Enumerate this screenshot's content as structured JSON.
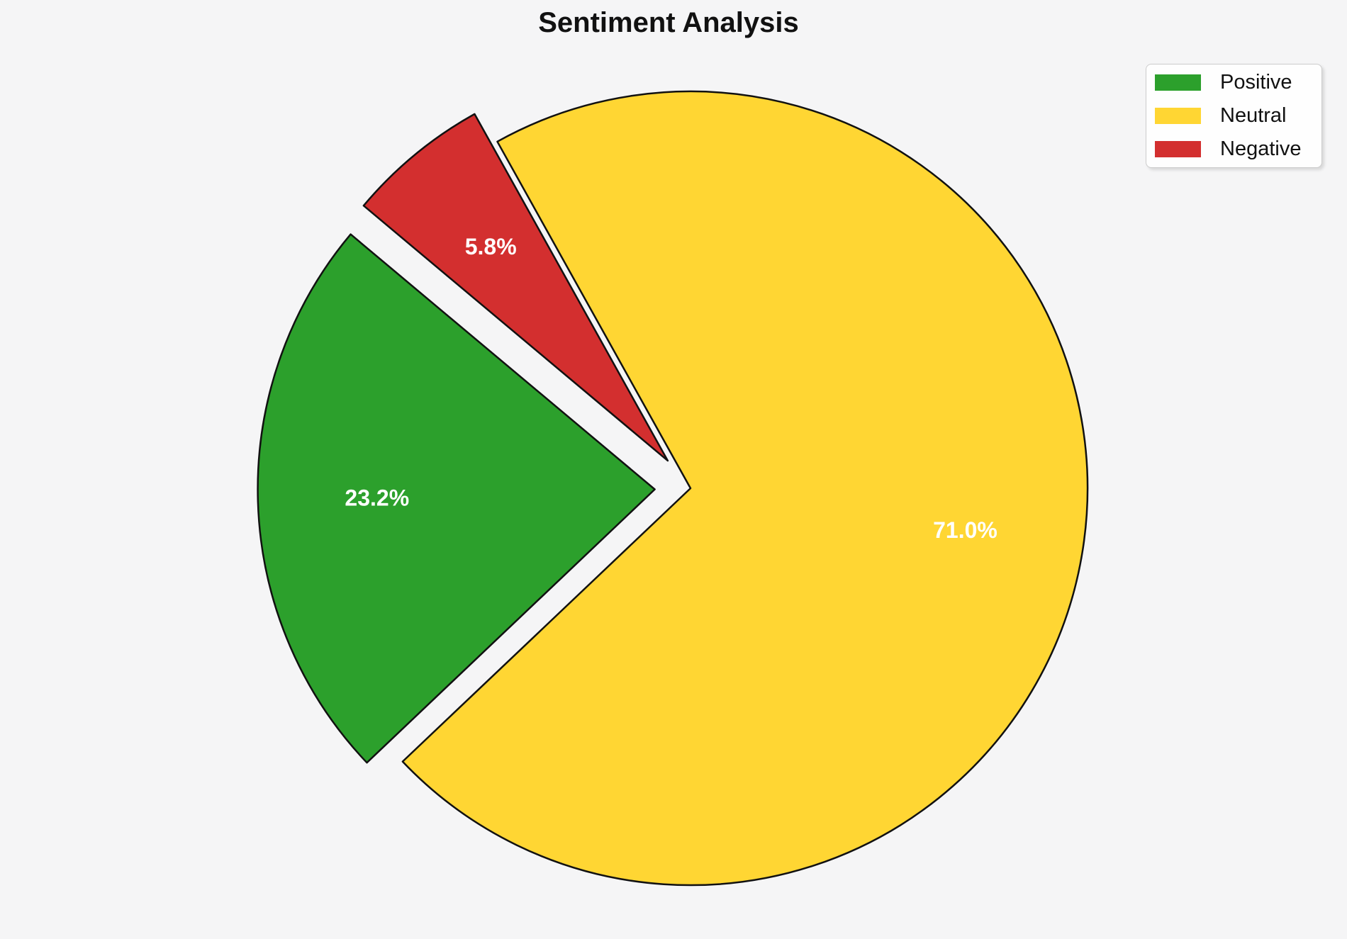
{
  "title": "Sentiment Analysis",
  "chart_data": {
    "type": "pie",
    "title": "Sentiment Analysis",
    "labels": [
      "Positive",
      "Neutral",
      "Negative"
    ],
    "values": [
      23.2,
      71.0,
      5.8
    ],
    "value_labels": [
      "23.2%",
      "71.0%",
      "5.8%"
    ],
    "colors": [
      "#2CA02C",
      "#FFD633",
      "#D32F2F"
    ],
    "startangle": 140,
    "counterclock": true,
    "explode": [
      0.09,
      0,
      0.09
    ],
    "labeldistance": 0.7,
    "edge_color": "#111111",
    "label_color": "#ffffff",
    "background": "#f5f5f6",
    "legend_position": "upper right"
  },
  "legend": {
    "items": [
      {
        "label": "Positive",
        "color": "#2CA02C"
      },
      {
        "label": "Neutral",
        "color": "#FFD633"
      },
      {
        "label": "Negative",
        "color": "#D32F2F"
      }
    ]
  }
}
